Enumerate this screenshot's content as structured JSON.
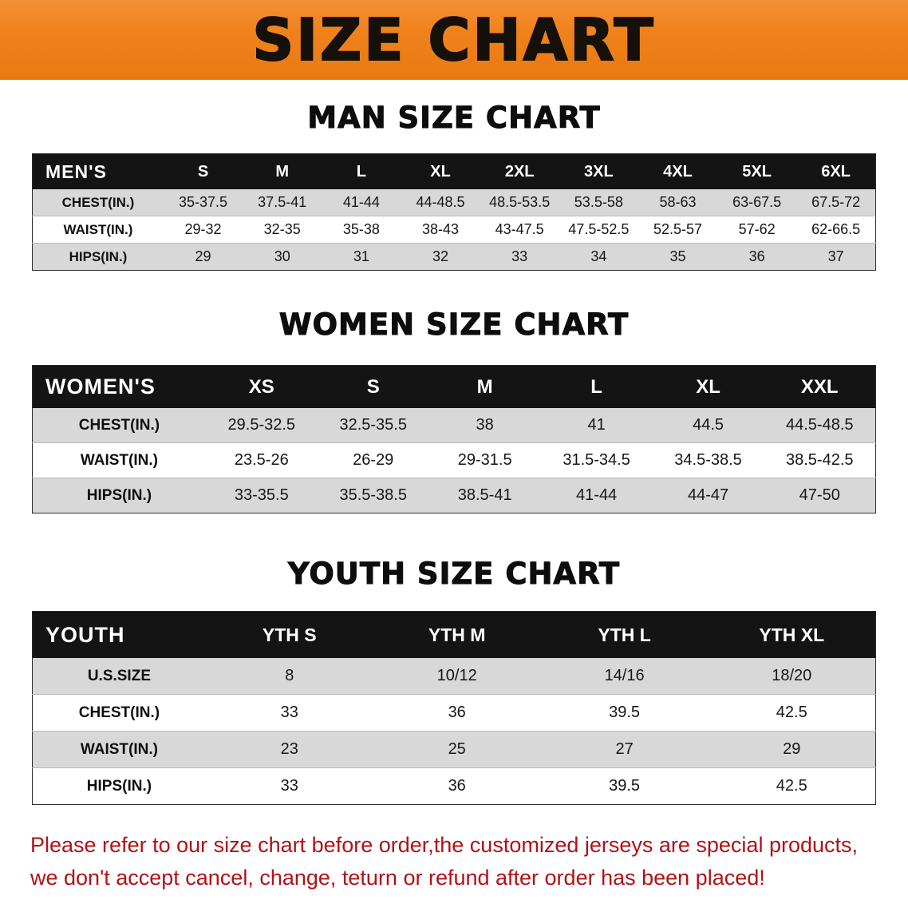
{
  "page": {
    "banner_title": "SIZE CHART",
    "footer_line1": "Please refer to our size chart before order,the customized jerseys are special products,",
    "footer_line2": "we don't accept cancel, change, teturn or refund after order has been placed!"
  },
  "colors": {
    "banner_orange": "#f0821c",
    "header_black": "#141414",
    "row_gray": "#d8d8d8",
    "row_white": "#ffffff",
    "footer_red": "#b01218"
  },
  "sections": [
    {
      "id": "men",
      "heading": "MAN SIZE CHART",
      "columns": [
        "MEN'S",
        "S",
        "M",
        "L",
        "XL",
        "2XL",
        "3XL",
        "4XL",
        "5XL",
        "6XL"
      ],
      "rows": [
        {
          "label": "CHEST(IN.)",
          "values": [
            "35-37.5",
            "37.5-41",
            "41-44",
            "44-48.5",
            "48.5-53.5",
            "53.5-58",
            "58-63",
            "63-67.5",
            "67.5-72"
          ]
        },
        {
          "label": "WAIST(IN.)",
          "values": [
            "29-32",
            "32-35",
            "35-38",
            "38-43",
            "43-47.5",
            "47.5-52.5",
            "52.5-57",
            "57-62",
            "62-66.5"
          ]
        },
        {
          "label": "HIPS(IN.)",
          "values": [
            "29",
            "30",
            "31",
            "32",
            "33",
            "34",
            "35",
            "36",
            "37"
          ]
        }
      ]
    },
    {
      "id": "women",
      "heading": "WOMEN SIZE CHART",
      "columns": [
        "WOMEN'S",
        "XS",
        "S",
        "M",
        "L",
        "XL",
        "XXL"
      ],
      "rows": [
        {
          "label": "CHEST(IN.)",
          "values": [
            "29.5-32.5",
            "32.5-35.5",
            "38",
            "41",
            "44.5",
            "44.5-48.5"
          ]
        },
        {
          "label": "WAIST(IN.)",
          "values": [
            "23.5-26",
            "26-29",
            "29-31.5",
            "31.5-34.5",
            "34.5-38.5",
            "38.5-42.5"
          ]
        },
        {
          "label": "HIPS(IN.)",
          "values": [
            "33-35.5",
            "35.5-38.5",
            "38.5-41",
            "41-44",
            "44-47",
            "47-50"
          ]
        }
      ]
    },
    {
      "id": "youth",
      "heading": "YOUTH SIZE CHART",
      "columns": [
        "YOUTH",
        "YTH S",
        "YTH M",
        "YTH L",
        "YTH XL"
      ],
      "rows": [
        {
          "label": "U.S.SIZE",
          "values": [
            "8",
            "10/12",
            "14/16",
            "18/20"
          ]
        },
        {
          "label": "CHEST(IN.)",
          "values": [
            "33",
            "36",
            "39.5",
            "42.5"
          ]
        },
        {
          "label": "WAIST(IN.)",
          "values": [
            "23",
            "25",
            "27",
            "29"
          ]
        },
        {
          "label": "HIPS(IN.)",
          "values": [
            "33",
            "36",
            "39.5",
            "42.5"
          ]
        }
      ]
    }
  ]
}
